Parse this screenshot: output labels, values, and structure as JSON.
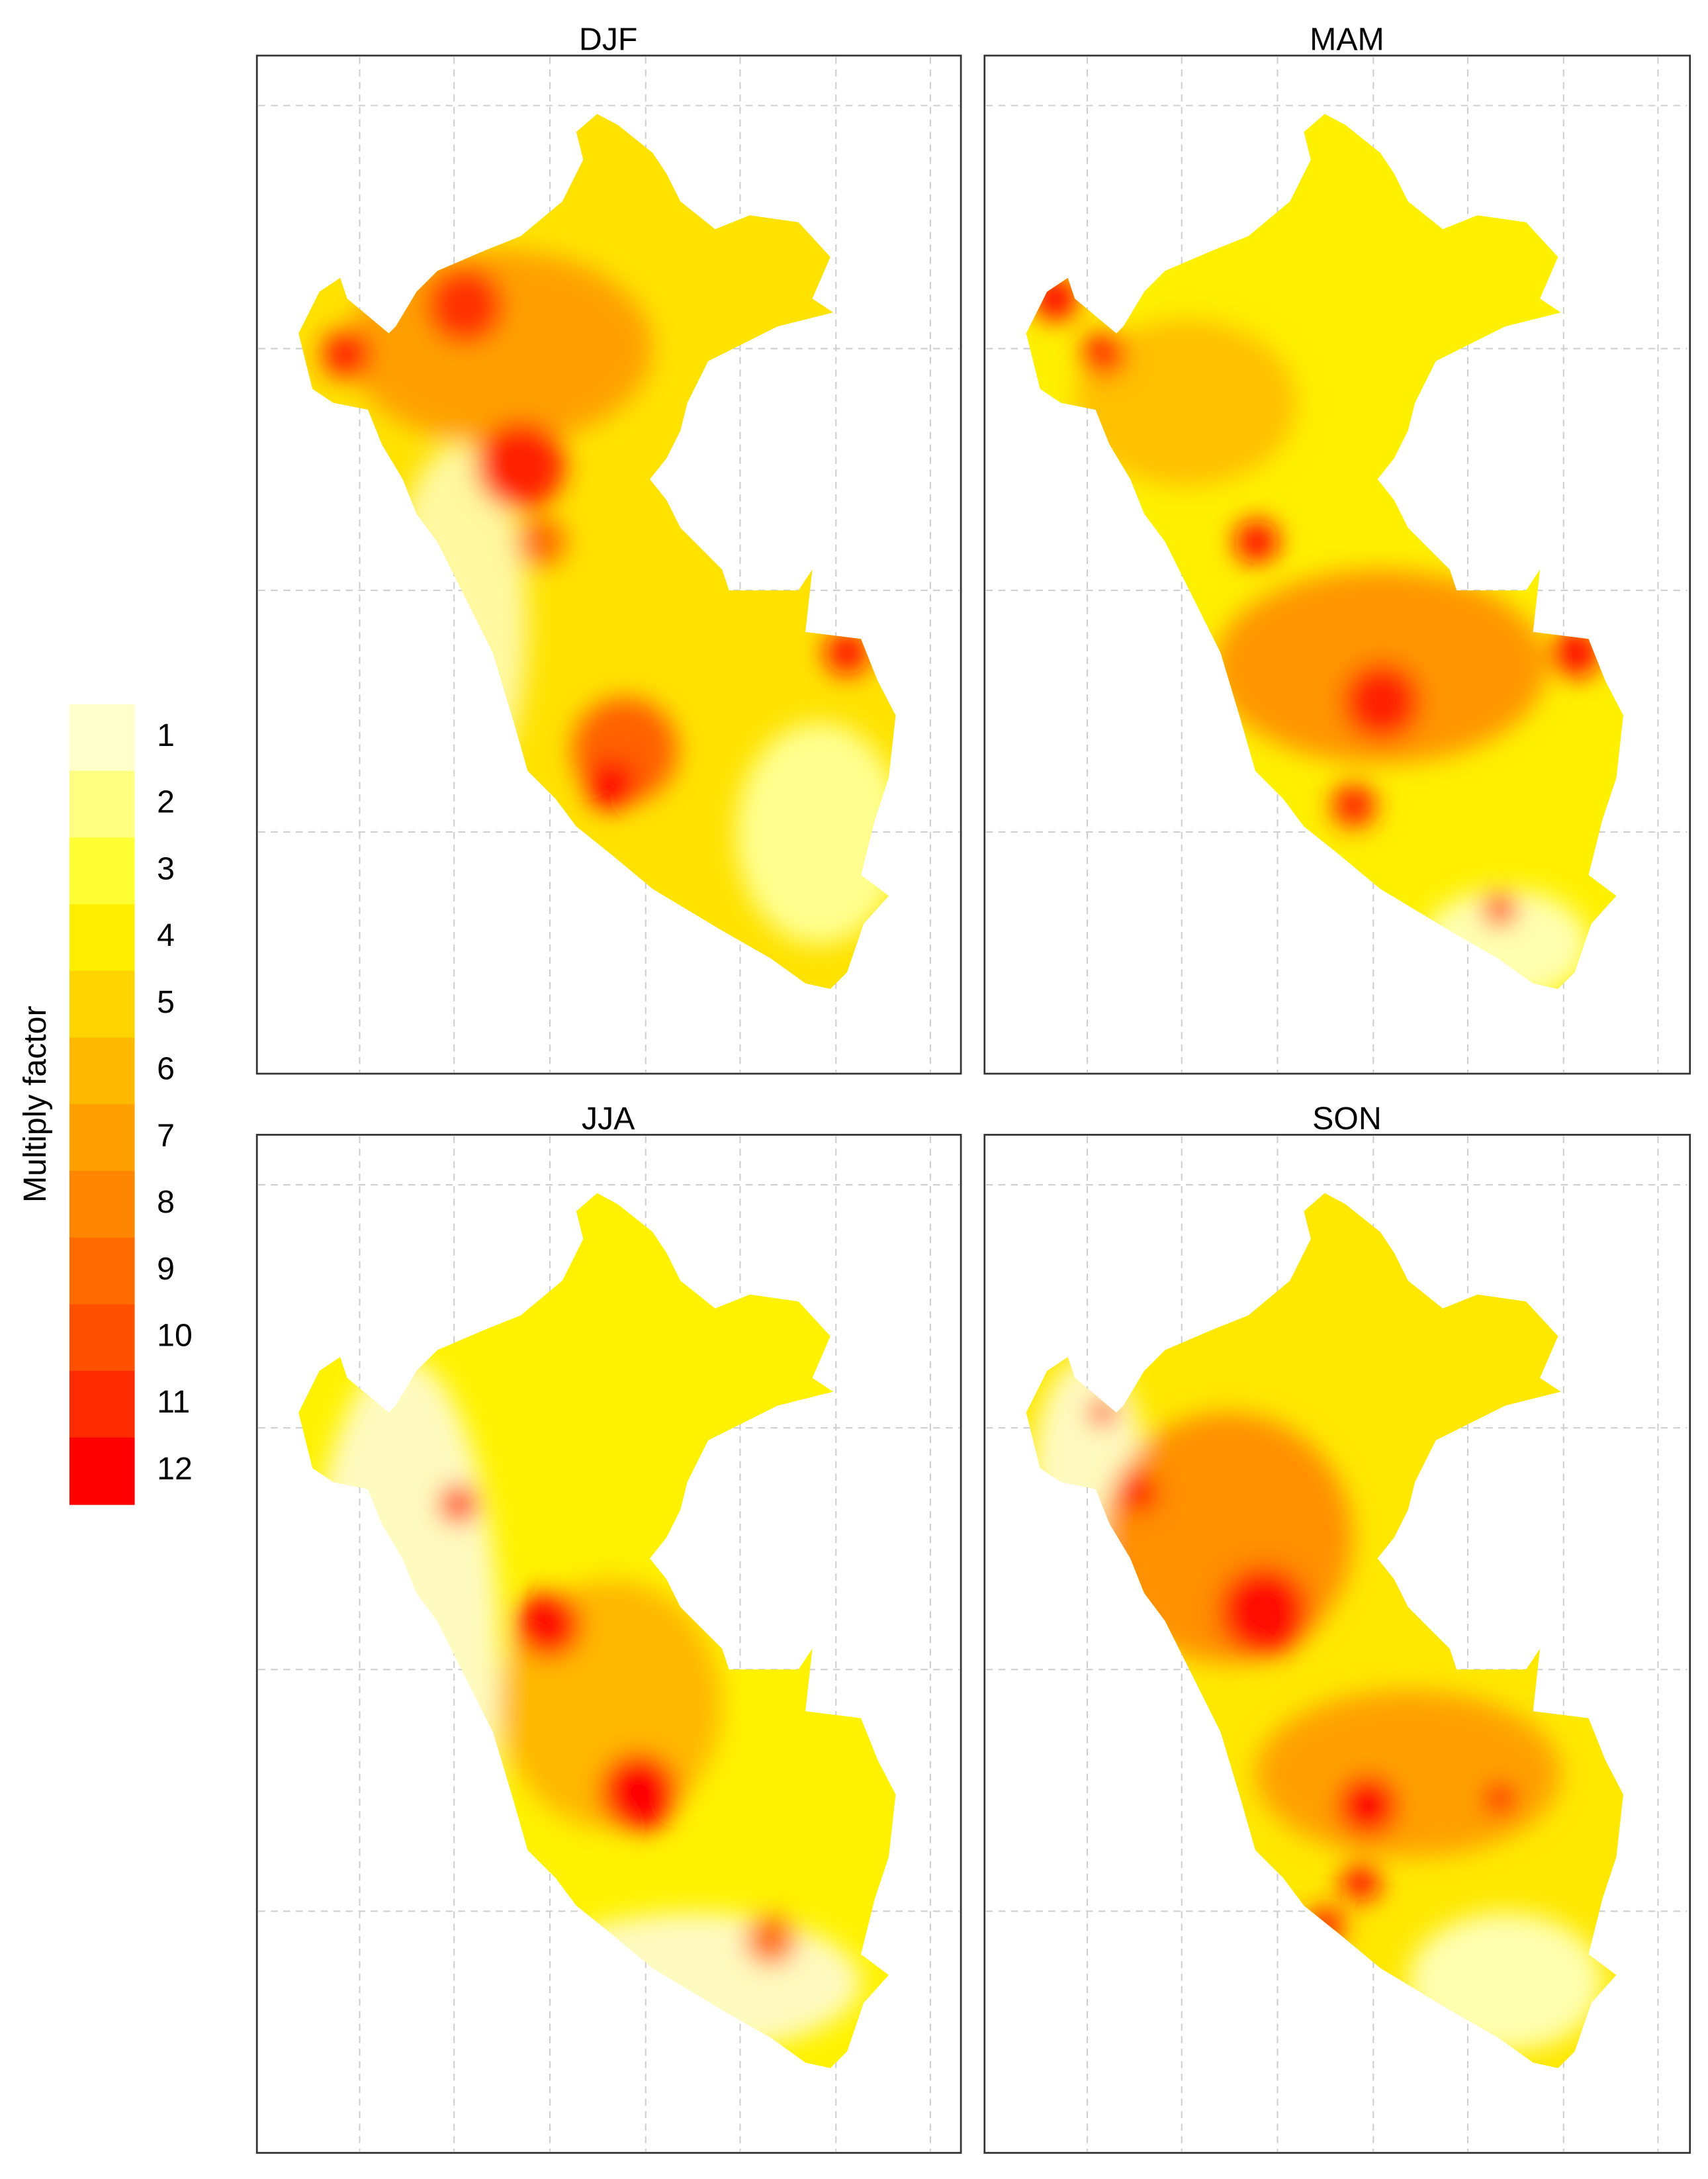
{
  "panels": [
    {
      "title": "DJF"
    },
    {
      "title": "MAM"
    },
    {
      "title": "JJA"
    },
    {
      "title": "SON"
    }
  ],
  "legend": {
    "title": "Multiply factor",
    "labels": [
      1,
      2,
      3,
      4,
      5,
      6,
      7,
      8,
      9,
      10,
      11,
      12
    ],
    "colors": [
      "#FFFFCC",
      "#FFFF80",
      "#FFFF33",
      "#FFEE00",
      "#FFD400",
      "#FFBA00",
      "#FFA000",
      "#FF8600",
      "#FF6B00",
      "#FF5000",
      "#FF2B00",
      "#FF0000"
    ]
  }
}
